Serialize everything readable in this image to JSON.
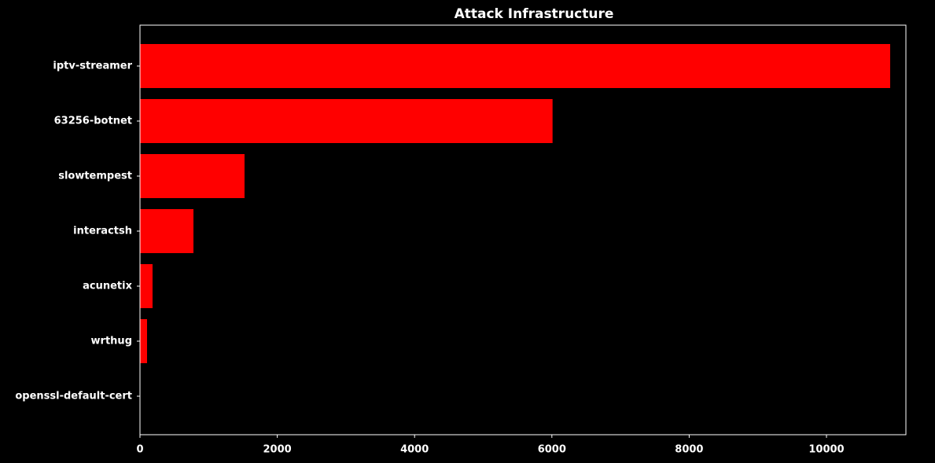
{
  "chart_data": {
    "type": "barh",
    "title": "Attack Infrastructure",
    "categories": [
      "iptv-streamer",
      "63256-botnet",
      "slowtempest",
      "interactsh",
      "acunetix",
      "wrthug",
      "openssl-default-cert"
    ],
    "values": [
      10928,
      6010,
      1523,
      779,
      183,
      103,
      1
    ],
    "color": "#ff0000",
    "xlim": [
      0,
      11157
    ],
    "xticks": [
      0,
      2000,
      4000,
      6000,
      8000,
      10000
    ],
    "grid": false
  }
}
